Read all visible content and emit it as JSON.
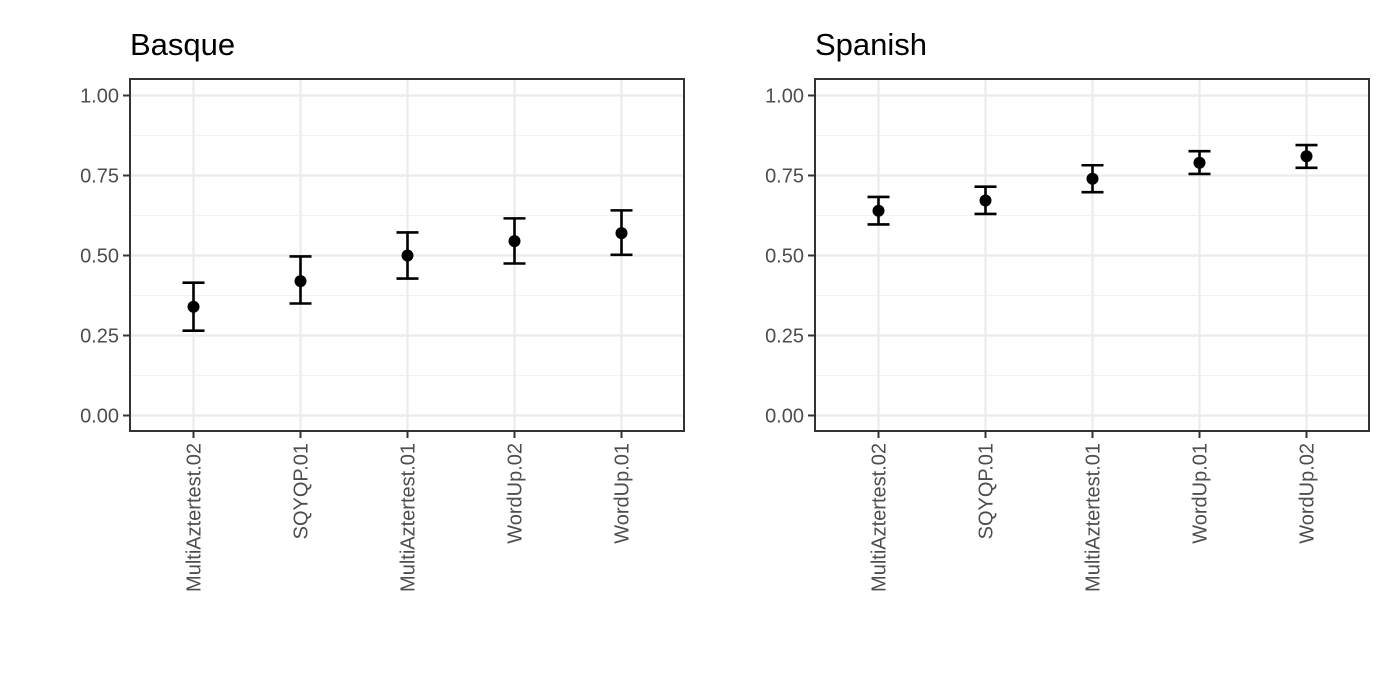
{
  "chart_data": [
    {
      "type": "scatter",
      "title": "Basque",
      "categories": [
        "MultiAztertest.02",
        "SQYQP.01",
        "MultiAztertest.01",
        "WordUp.02",
        "WordUp.01"
      ],
      "values": [
        0.34,
        0.42,
        0.5,
        0.545,
        0.57
      ],
      "lower": [
        0.265,
        0.35,
        0.428,
        0.475,
        0.502
      ],
      "upper": [
        0.415,
        0.497,
        0.572,
        0.616,
        0.641
      ],
      "ylim": [
        0,
        1
      ],
      "yticks": [
        "0.00",
        "0.25",
        "0.50",
        "0.75",
        "1.00"
      ],
      "xlabel": "",
      "ylabel": "",
      "grid": true,
      "legend": "none"
    },
    {
      "type": "scatter",
      "title": "Spanish",
      "categories": [
        "MultiAztertest.02",
        "SQYQP.01",
        "MultiAztertest.01",
        "WordUp.01",
        "WordUp.02"
      ],
      "values": [
        0.64,
        0.672,
        0.74,
        0.79,
        0.81
      ],
      "lower": [
        0.597,
        0.63,
        0.698,
        0.755,
        0.774
      ],
      "upper": [
        0.683,
        0.715,
        0.782,
        0.826,
        0.845
      ],
      "ylim": [
        0,
        1
      ],
      "yticks": [
        "0.00",
        "0.25",
        "0.50",
        "0.75",
        "1.00"
      ],
      "xlabel": "",
      "ylabel": "",
      "grid": true,
      "legend": "none"
    }
  ]
}
